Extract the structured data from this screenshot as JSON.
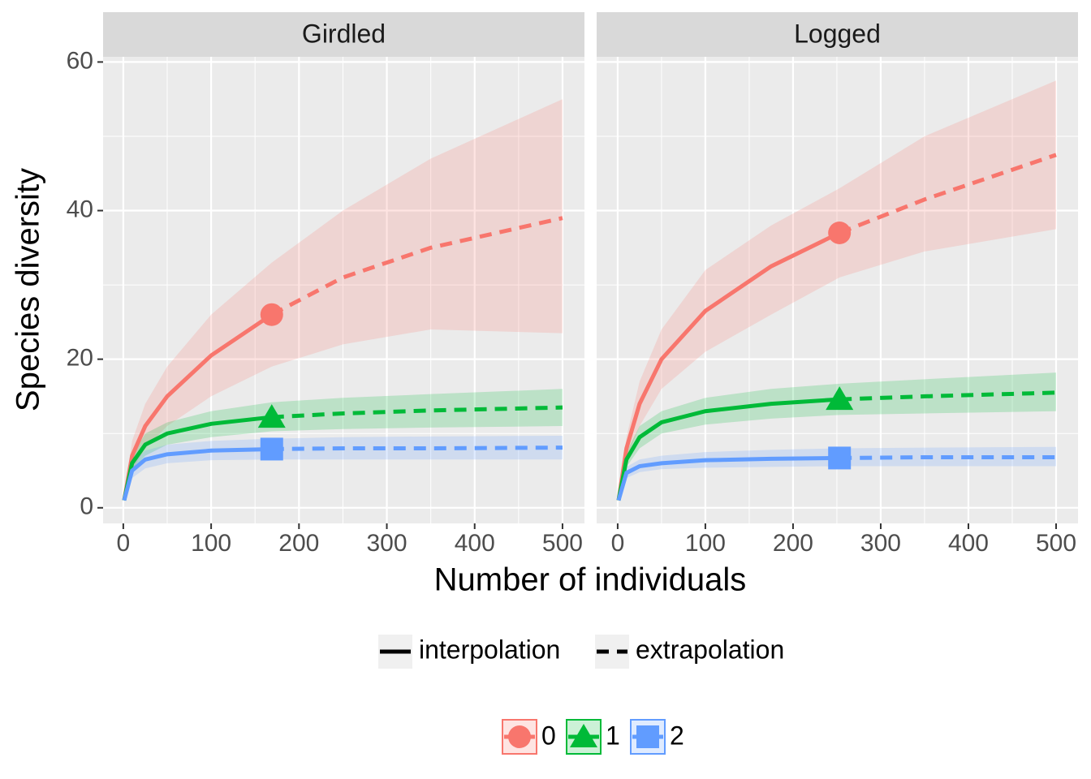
{
  "chart_data": [
    {
      "type": "line",
      "title": "Girdled",
      "observed_x": 169,
      "x": [
        1,
        10,
        25,
        50,
        100,
        169,
        250,
        350,
        500
      ],
      "xlim": [
        -23,
        525
      ],
      "ylim": [
        -2.1,
        60.7
      ],
      "xticks": [
        0,
        100,
        200,
        300,
        400,
        500
      ],
      "yticks": [
        0,
        20,
        40,
        60
      ],
      "grid": true,
      "series": [
        {
          "name": "0",
          "color": "#F8766D",
          "marker": "circle",
          "values": [
            1,
            7,
            11,
            15,
            20.5,
            26,
            31,
            35,
            39
          ],
          "lower": [
            1,
            5,
            8,
            11,
            15,
            19,
            22,
            24,
            23.5
          ],
          "upper": [
            1,
            9,
            14,
            19,
            26,
            33,
            40,
            47,
            55
          ]
        },
        {
          "name": "1",
          "color": "#00BA38",
          "marker": "triangle",
          "values": [
            1,
            6,
            8.5,
            10,
            11.3,
            12.2,
            12.7,
            13.1,
            13.5
          ],
          "lower": [
            1,
            5,
            7,
            8.5,
            9.5,
            10.3,
            10.6,
            10.8,
            11
          ],
          "upper": [
            1,
            7,
            10,
            11.5,
            13,
            14.2,
            14.8,
            15.3,
            16
          ]
        },
        {
          "name": "2",
          "color": "#619CFF",
          "marker": "square",
          "values": [
            1,
            5,
            6.5,
            7.2,
            7.7,
            7.9,
            8,
            8,
            8.1
          ],
          "lower": [
            1,
            4,
            5.3,
            6,
            6.4,
            6.5,
            6.5,
            6.5,
            6.5
          ],
          "upper": [
            1,
            6,
            7.7,
            8.5,
            9,
            9.3,
            9.5,
            9.6,
            9.7
          ]
        }
      ]
    },
    {
      "type": "line",
      "title": "Logged",
      "observed_x": 253,
      "x": [
        1,
        10,
        25,
        50,
        100,
        175,
        253,
        350,
        500
      ],
      "xlim": [
        -24,
        525
      ],
      "ylim": [
        -2.1,
        60.7
      ],
      "xticks": [
        0,
        100,
        200,
        300,
        400,
        500
      ],
      "yticks": [
        0,
        20,
        40,
        60
      ],
      "grid": true,
      "series": [
        {
          "name": "0",
          "color": "#F8766D",
          "marker": "circle",
          "values": [
            1,
            8,
            14,
            20,
            26.5,
            32.5,
            37,
            41.5,
            47.5
          ],
          "lower": [
            1,
            6.5,
            11,
            16,
            21,
            26,
            31,
            34.5,
            37.5
          ],
          "upper": [
            1,
            9.5,
            17,
            24,
            32,
            38,
            43,
            50,
            57.5
          ]
        },
        {
          "name": "1",
          "color": "#00BA38",
          "marker": "triangle",
          "values": [
            1,
            6.5,
            9.5,
            11.5,
            13,
            14,
            14.6,
            15,
            15.5
          ],
          "lower": [
            1,
            5.5,
            8,
            10,
            11.2,
            12,
            12.5,
            12.7,
            13
          ],
          "upper": [
            1,
            7.5,
            11,
            13,
            14.8,
            16,
            16.7,
            17.3,
            18.2
          ]
        },
        {
          "name": "2",
          "color": "#619CFF",
          "marker": "square",
          "values": [
            1,
            4.7,
            5.6,
            6,
            6.4,
            6.6,
            6.7,
            6.8,
            6.8
          ],
          "lower": [
            1,
            4,
            4.8,
            5.2,
            5.4,
            5.5,
            5.6,
            5.6,
            5.6
          ],
          "upper": [
            1,
            5.5,
            6.5,
            7,
            7.5,
            7.8,
            8,
            8.1,
            8.2
          ]
        }
      ]
    }
  ],
  "labels": {
    "x_label": "Number of individuals",
    "y_label": "Species diversity",
    "linetype_legend": [
      "interpolation",
      "extrapolation"
    ]
  }
}
